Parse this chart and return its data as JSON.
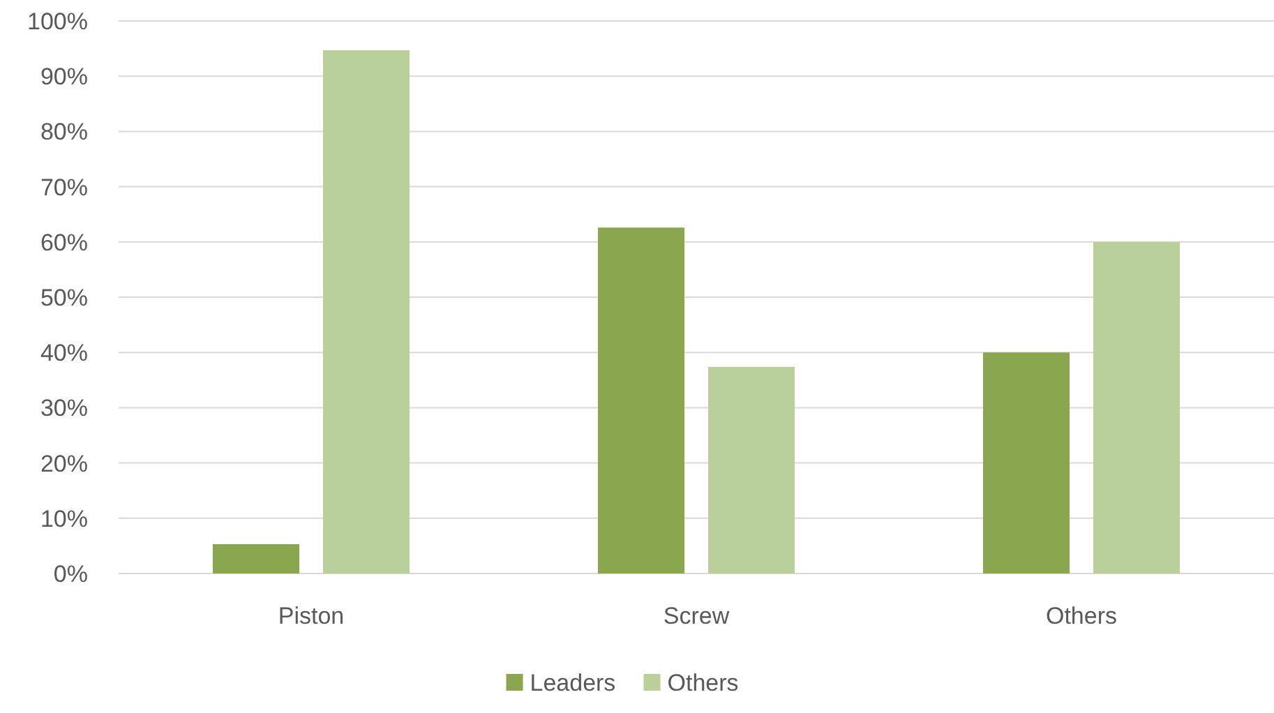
{
  "chart_data": {
    "type": "bar",
    "categories": [
      "Piston",
      "Screw",
      "Others"
    ],
    "series": [
      {
        "name": "Leaders",
        "color": "#8aa64f",
        "values": [
          5.3,
          62.6,
          40
        ]
      },
      {
        "name": "Others",
        "color": "#b9d09a",
        "values": [
          94.7,
          37.4,
          60
        ]
      }
    ],
    "ylim": [
      0,
      100
    ],
    "yticks": [
      {
        "value": 0,
        "label": "0%"
      },
      {
        "value": 10,
        "label": "10%"
      },
      {
        "value": 20,
        "label": "20%"
      },
      {
        "value": 30,
        "label": "30%"
      },
      {
        "value": 40,
        "label": "40%"
      },
      {
        "value": 50,
        "label": "50%"
      },
      {
        "value": 60,
        "label": "60%"
      },
      {
        "value": 70,
        "label": "70%"
      },
      {
        "value": 80,
        "label": "80%"
      },
      {
        "value": 90,
        "label": "90%"
      },
      {
        "value": 100,
        "label": "100%"
      }
    ],
    "grid": "y",
    "legend": "bottom"
  }
}
